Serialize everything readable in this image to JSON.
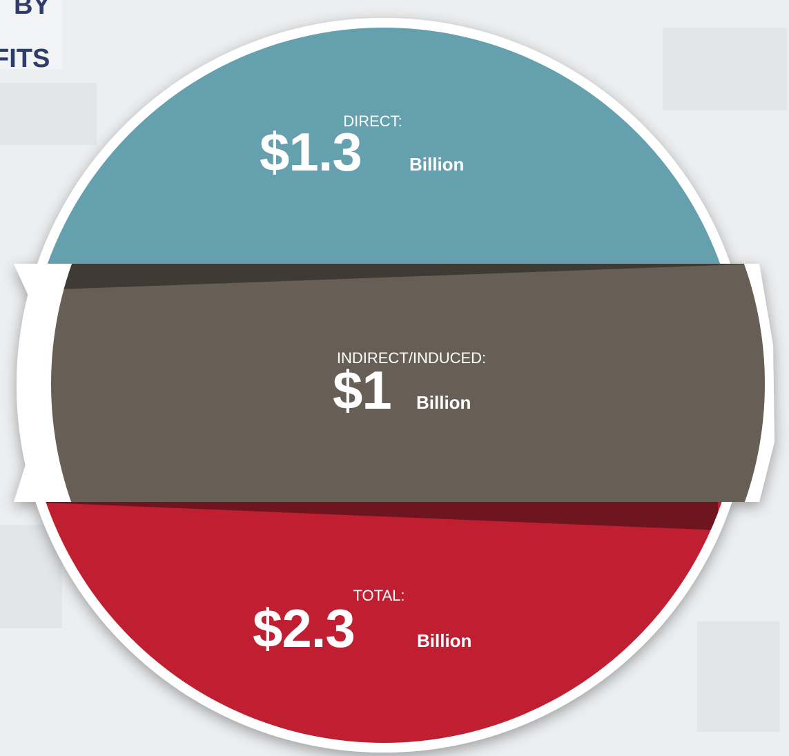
{
  "header": {
    "lines": [
      "BY",
      "FITS"
    ]
  },
  "sections": [
    {
      "label": "DIRECT:",
      "value": "$1.3",
      "unit": "Billion"
    },
    {
      "label": "INDIRECT/INDUCED:",
      "value": "$1",
      "unit": "Billion"
    },
    {
      "label": "TOTAL:",
      "value": "$2.3",
      "unit": "Billion"
    }
  ]
}
